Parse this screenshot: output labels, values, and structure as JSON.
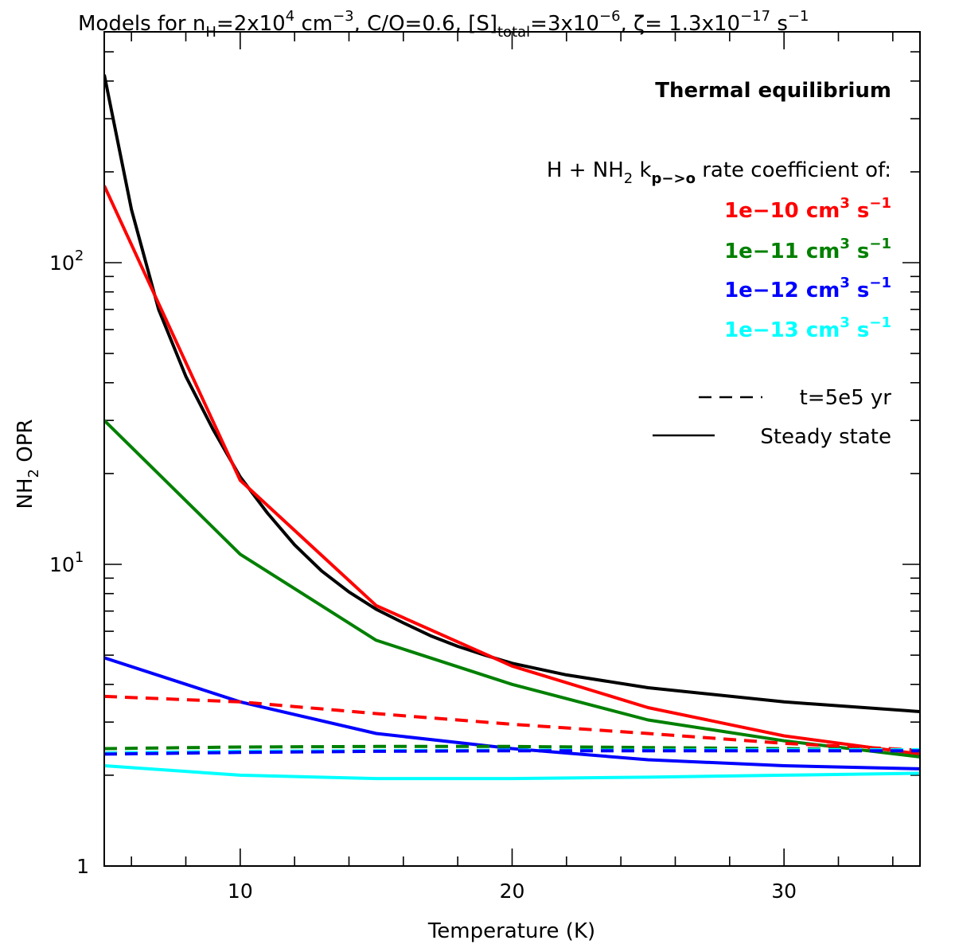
{
  "chart_data": {
    "type": "line",
    "title": {
      "prefix": "Models for n",
      "nh_sub": "H",
      "nh_eq": "=2x10",
      "nh_exp": "4",
      "nh_unit": " cm",
      "nh_unit_exp": "−3",
      "co": ", C/O=0.6, [S]",
      "s_sub": "total",
      "s_eq": "=3x10",
      "s_exp": "−6",
      "zeta": ", ζ=  1.3x10",
      "zeta_exp": "−17",
      "zeta_unit": " s",
      "zeta_unit_exp": "−1"
    },
    "xlabel": "Temperature (K)",
    "ylabel_main": "NH",
    "ylabel_sub": "2",
    "ylabel_rest": " OPR",
    "xlim": [
      5,
      35
    ],
    "ylim": [
      1,
      500
    ],
    "yscale": "log",
    "x_ticks": [
      {
        "value": 10,
        "label": "10"
      },
      {
        "value": 20,
        "label": "20"
      },
      {
        "value": 30,
        "label": "30"
      }
    ],
    "y_ticks": [
      {
        "value": 1,
        "label": "1",
        "exp": ""
      },
      {
        "value": 10,
        "label": "10",
        "exp": "1"
      },
      {
        "value": 100,
        "label": "10",
        "exp": "2"
      }
    ],
    "legend": {
      "heading": "Thermal equilibrium",
      "rate_prefix": "H + NH",
      "rate_sub2": "2",
      "rate_k": " k",
      "rate_ksub": "p−>o",
      "rate_suffix": " rate coefficient of:",
      "entries": [
        {
          "label": "1e−10 cm",
          "exp": "3",
          "unit": " s",
          "unit_exp": "−1",
          "color": "#ff0000"
        },
        {
          "label": "1e−11 cm",
          "exp": "3",
          "unit": " s",
          "unit_exp": "−1",
          "color": "#008000"
        },
        {
          "label": "1e−12 cm",
          "exp": "3",
          "unit": " s",
          "unit_exp": "−1",
          "color": "#0000ff"
        },
        {
          "label": "1e−13 cm",
          "exp": "3",
          "unit": " s",
          "unit_exp": "−1",
          "color": "#00ffff"
        }
      ],
      "dashed_label": "t=5e5 yr",
      "solid_label": "Steady state"
    },
    "series": [
      {
        "name": "Thermal equilibrium (steady state)",
        "color": "#000000",
        "dashed": false,
        "x": [
          5,
          6,
          7,
          8,
          9,
          10,
          11,
          12,
          13,
          14,
          15,
          16,
          17,
          18,
          19,
          20,
          22,
          25,
          30,
          35
        ],
        "y": [
          420,
          150,
          70,
          42,
          28,
          19.5,
          14.8,
          11.6,
          9.5,
          8.1,
          7.1,
          6.4,
          5.8,
          5.35,
          5.0,
          4.7,
          4.3,
          3.9,
          3.5,
          3.25
        ]
      },
      {
        "name": "1e-10 steady state",
        "color": "#ff0000",
        "dashed": false,
        "x": [
          5,
          10,
          15,
          20,
          25,
          30,
          35
        ],
        "y": [
          180,
          19,
          7.3,
          4.6,
          3.35,
          2.7,
          2.35
        ]
      },
      {
        "name": "1e-11 steady state",
        "color": "#008000",
        "dashed": false,
        "x": [
          5,
          10,
          15,
          20,
          25,
          30,
          35
        ],
        "y": [
          30,
          10.8,
          5.6,
          4.0,
          3.05,
          2.6,
          2.3
        ]
      },
      {
        "name": "1e-12 steady state",
        "color": "#0000ff",
        "dashed": false,
        "x": [
          5,
          10,
          15,
          20,
          25,
          30,
          35
        ],
        "y": [
          4.9,
          3.5,
          2.75,
          2.45,
          2.25,
          2.15,
          2.1
        ]
      },
      {
        "name": "1e-13 steady state",
        "color": "#00ffff",
        "dashed": false,
        "x": [
          5,
          10,
          15,
          20,
          25,
          30,
          35
        ],
        "y": [
          2.15,
          2.0,
          1.95,
          1.95,
          1.97,
          2.0,
          2.03
        ]
      },
      {
        "name": "1e-10 t=5e5 yr",
        "color": "#ff0000",
        "dashed": true,
        "x": [
          5,
          10,
          15,
          20,
          25,
          30,
          35
        ],
        "y": [
          3.65,
          3.5,
          3.2,
          2.95,
          2.75,
          2.55,
          2.42
        ]
      },
      {
        "name": "1e-11 t=5e5 yr",
        "color": "#008000",
        "dashed": true,
        "x": [
          5,
          10,
          15,
          20,
          25,
          30,
          35
        ],
        "y": [
          2.45,
          2.48,
          2.49,
          2.49,
          2.47,
          2.45,
          2.42
        ]
      },
      {
        "name": "1e-13 t=5e5 yr",
        "color": "#00ffff",
        "dashed": true,
        "x": [
          5,
          10,
          15,
          20,
          25,
          30,
          35
        ],
        "y": [
          2.37,
          2.4,
          2.41,
          2.42,
          2.42,
          2.43,
          2.43
        ]
      },
      {
        "name": "1e-12 t=5e5 yr",
        "color": "#0000ff",
        "dashed": true,
        "x": [
          5,
          10,
          15,
          20,
          25,
          30,
          35
        ],
        "y": [
          2.35,
          2.38,
          2.4,
          2.41,
          2.41,
          2.41,
          2.41
        ]
      }
    ]
  }
}
